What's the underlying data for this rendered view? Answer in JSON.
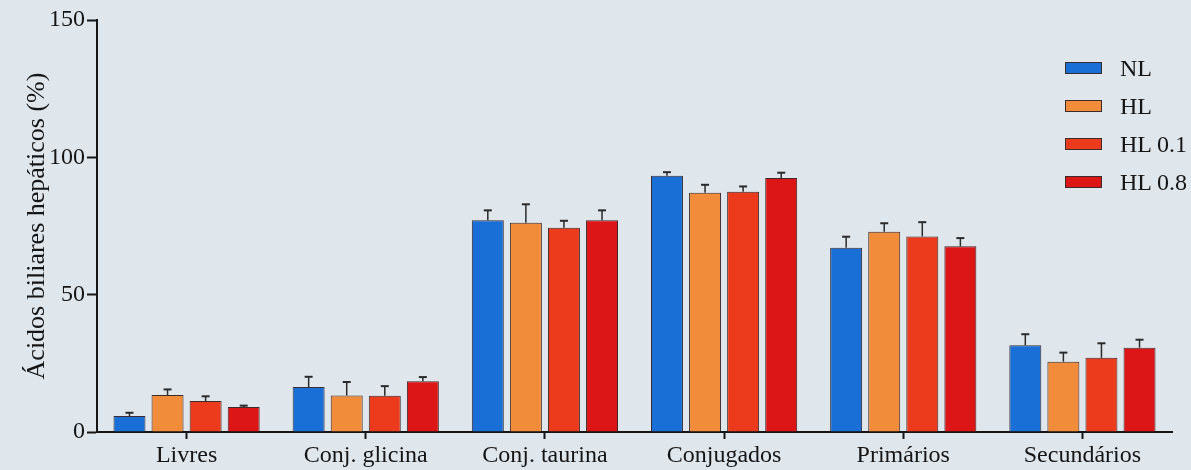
{
  "chart_data": {
    "type": "bar",
    "ylabel": "Ácidos biliares hepáticos (%)",
    "categories": [
      "Livres",
      "Conj. glicina",
      "Conj. taurina",
      "Conjugados",
      "Primários",
      "Secundários"
    ],
    "series": [
      {
        "name": "NL",
        "color": "#1a6fd6",
        "values": [
          5.8,
          16.4,
          77.1,
          93.3,
          67.1,
          31.6
        ],
        "errors": [
          [
            5.8,
            7.0
          ],
          [
            16.4,
            20.1
          ],
          [
            77.1,
            80.7
          ],
          [
            93.3,
            94.6
          ],
          [
            67.1,
            71.1
          ],
          [
            31.6,
            35.6
          ]
        ]
      },
      {
        "name": "HL",
        "color": "#f08c3a",
        "values": [
          13.5,
          13.3,
          76.2,
          87.1,
          72.9,
          25.6
        ],
        "errors": [
          [
            13.5,
            15.5
          ],
          [
            13.3,
            18.2
          ],
          [
            76.2,
            82.9
          ],
          [
            87.1,
            90.0
          ],
          [
            72.9,
            76.0
          ],
          [
            25.6,
            28.9
          ]
        ]
      },
      {
        "name": "HL 0.1",
        "color": "#ec3b1c",
        "values": [
          11.3,
          13.2,
          74.4,
          87.5,
          71.2,
          27.0
        ],
        "errors": [
          [
            11.3,
            13.0
          ],
          [
            13.2,
            16.7
          ],
          [
            74.4,
            76.9
          ],
          [
            87.5,
            89.4
          ],
          [
            71.2,
            76.4
          ],
          [
            27.0,
            32.3
          ]
        ]
      },
      {
        "name": "HL 0.8",
        "color": "#dc1616",
        "values": [
          9.1,
          18.5,
          77.1,
          92.5,
          67.6,
          30.7
        ],
        "errors": [
          [
            9.1,
            9.6
          ],
          [
            18.5,
            20.0
          ],
          [
            77.1,
            80.7
          ],
          [
            92.5,
            94.4
          ],
          [
            67.6,
            70.6
          ],
          [
            30.7,
            33.6
          ]
        ]
      }
    ],
    "ylim": [
      0,
      150
    ],
    "yticks": [
      0,
      50,
      100,
      150
    ],
    "legend": "top right"
  }
}
